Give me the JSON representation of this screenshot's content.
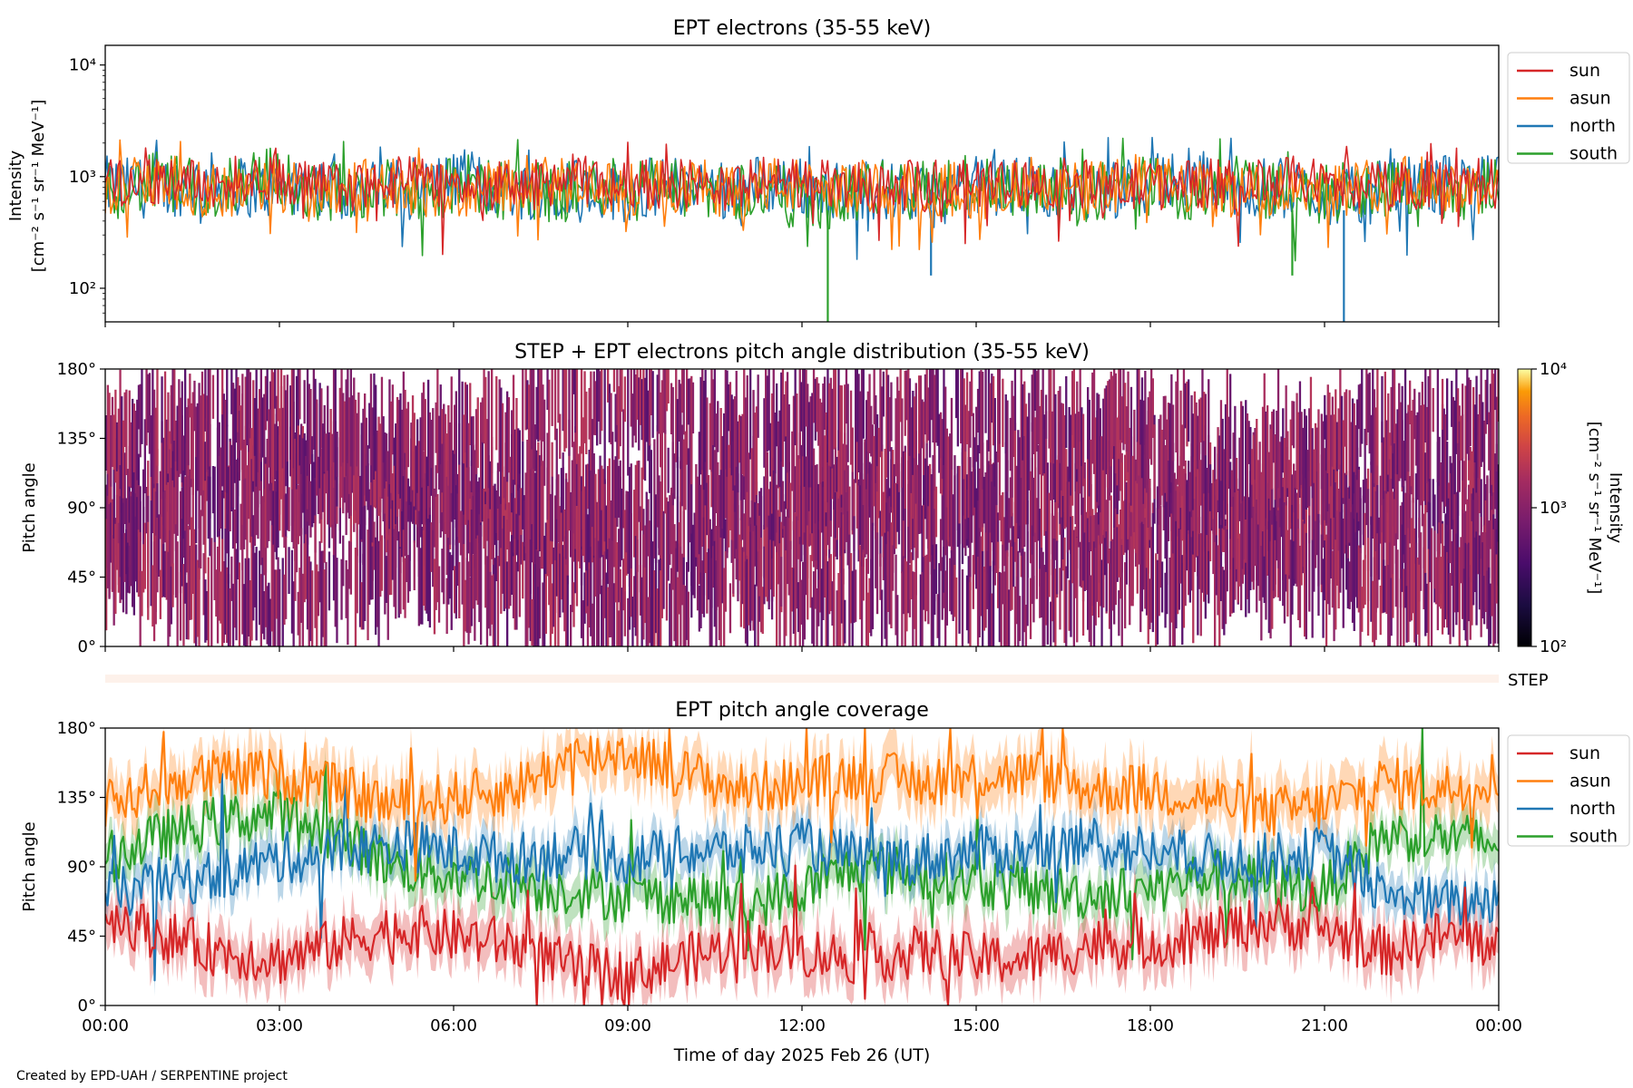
{
  "chart_data": [
    {
      "type": "line",
      "title": "EPT electrons (35-55 keV)",
      "ylabel": "Intensity",
      "yunit": "[cm⁻² s⁻¹ sr⁻¹ MeV⁻¹]",
      "yscale": "log",
      "ylim": [
        50,
        15000
      ],
      "yticks": [
        {
          "value": 100,
          "label": "10²"
        },
        {
          "value": 1000,
          "label": "10³"
        },
        {
          "value": 10000,
          "label": "10⁴"
        }
      ],
      "xlim": [
        0,
        24
      ],
      "legend": "outside-right",
      "series": [
        {
          "name": "north",
          "color": "#1f77b4",
          "base": 820,
          "spread": 0.55,
          "values": [
            800,
            700,
            1100,
            620,
            900,
            480,
            760,
            1300,
            560,
            950,
            420,
            880,
            700,
            1050,
            500,
            650,
            130,
            900,
            760,
            560,
            850,
            1700,
            540,
            690,
            50,
            700,
            980,
            860
          ]
        },
        {
          "name": "south",
          "color": "#2ca02c",
          "base": 780,
          "spread": 0.55,
          "values": [
            700,
            1200,
            600,
            1900,
            500,
            880,
            420,
            1000,
            760,
            560,
            1300,
            630,
            800,
            380,
            50,
            900,
            620,
            1400,
            700,
            540,
            980,
            650,
            1200,
            130,
            760,
            880,
            600,
            1100
          ]
        },
        {
          "name": "asun",
          "color": "#ff7f0e",
          "base": 800,
          "spread": 0.5,
          "values": [
            760,
            1300,
            520,
            900,
            640,
            1100,
            700,
            480,
            1200,
            820,
            560,
            950,
            700,
            1050,
            600,
            880,
            720,
            540,
            980,
            660,
            1200,
            760,
            520,
            900,
            700,
            1300,
            820,
            760
          ]
        },
        {
          "name": "sun",
          "color": "#d62728",
          "base": 850,
          "spread": 0.45,
          "values": [
            900,
            1200,
            700,
            1500,
            800,
            560,
            1100,
            900,
            640,
            1300,
            760,
            1000,
            620,
            1200,
            820,
            560,
            950,
            700,
            1100,
            850,
            640,
            1000,
            760,
            1200,
            900,
            700,
            1100,
            880
          ]
        }
      ]
    },
    {
      "type": "heatmap",
      "title": "STEP + EPT electrons pitch angle distribution (35-55 keV)",
      "ylabel": "Pitch angle",
      "ylim": [
        0,
        180
      ],
      "yticks": [
        {
          "value": 0,
          "label": "0°"
        },
        {
          "value": 45,
          "label": "45°"
        },
        {
          "value": 90,
          "label": "90°"
        },
        {
          "value": 135,
          "label": "135°"
        },
        {
          "value": 180,
          "label": "180°"
        }
      ],
      "xlim": [
        0,
        24
      ],
      "colorbar": {
        "label": "Intensity",
        "unit": "[cm⁻² s⁻¹ sr⁻¹ MeV⁻¹]",
        "scale": "log",
        "range": [
          100,
          10000
        ],
        "ticks": [
          {
            "value": 100,
            "label": "10²"
          },
          {
            "value": 1000,
            "label": "10³"
          },
          {
            "value": 10000,
            "label": "10⁴"
          }
        ],
        "colormap": "inferno"
      },
      "intensity_typical": 800
    },
    {
      "type": "line",
      "title": "",
      "label": "STEP",
      "note": "empty STEP strip"
    },
    {
      "type": "area",
      "title": "EPT pitch angle coverage",
      "ylabel": "Pitch angle",
      "xlabel": "Time of day 2025 Feb 26 (UT)",
      "ylim": [
        0,
        180
      ],
      "yticks": [
        {
          "value": 0,
          "label": "0°"
        },
        {
          "value": 45,
          "label": "45°"
        },
        {
          "value": 90,
          "label": "90°"
        },
        {
          "value": 135,
          "label": "135°"
        },
        {
          "value": 180,
          "label": "180°"
        }
      ],
      "xlim": [
        0,
        24
      ],
      "xticks": [
        {
          "value": 0,
          "label": "00:00"
        },
        {
          "value": 3,
          "label": "03:00"
        },
        {
          "value": 6,
          "label": "06:00"
        },
        {
          "value": 9,
          "label": "09:00"
        },
        {
          "value": 12,
          "label": "12:00"
        },
        {
          "value": 15,
          "label": "15:00"
        },
        {
          "value": 18,
          "label": "18:00"
        },
        {
          "value": 21,
          "label": "21:00"
        },
        {
          "value": 24,
          "label": "00:00"
        }
      ],
      "legend": "outside-right",
      "series": [
        {
          "name": "south",
          "color": "#2ca02c",
          "halfwidth": 12,
          "x": [
            0,
            1,
            2,
            3,
            4,
            5,
            6,
            7,
            8,
            9,
            10,
            11,
            12,
            13,
            14,
            15,
            16,
            17,
            18,
            19,
            20,
            21,
            22,
            23,
            24
          ],
          "values": [
            95,
            110,
            120,
            125,
            110,
            90,
            85,
            80,
            75,
            70,
            70,
            65,
            75,
            90,
            85,
            80,
            75,
            72,
            75,
            85,
            80,
            75,
            110,
            110,
            105
          ]
        },
        {
          "name": "north",
          "color": "#1f77b4",
          "halfwidth": 12,
          "x": [
            0,
            1,
            2,
            3,
            4,
            5,
            6,
            7,
            8,
            9,
            10,
            11,
            12,
            13,
            14,
            15,
            16,
            17,
            18,
            19,
            20,
            21,
            22,
            23,
            24
          ],
          "values": [
            70,
            80,
            85,
            95,
            100,
            105,
            100,
            95,
            100,
            95,
            100,
            100,
            105,
            95,
            95,
            100,
            100,
            105,
            100,
            95,
            95,
            100,
            75,
            65,
            70
          ]
        },
        {
          "name": "asun",
          "color": "#ff7f0e",
          "halfwidth": 15,
          "x": [
            0,
            1,
            2,
            3,
            4,
            5,
            6,
            7,
            8,
            9,
            10,
            11,
            12,
            13,
            14,
            15,
            16,
            17,
            18,
            19,
            20,
            21,
            22,
            23,
            24
          ],
          "values": [
            130,
            145,
            150,
            150,
            140,
            130,
            135,
            140,
            160,
            165,
            150,
            140,
            145,
            150,
            145,
            150,
            150,
            140,
            140,
            135,
            125,
            130,
            145,
            140,
            150
          ]
        },
        {
          "name": "sun",
          "color": "#d62728",
          "halfwidth": 15,
          "x": [
            0,
            1,
            2,
            3,
            4,
            5,
            6,
            7,
            8,
            9,
            10,
            11,
            12,
            13,
            14,
            15,
            16,
            17,
            18,
            19,
            20,
            21,
            22,
            23,
            24
          ],
          "values": [
            60,
            45,
            35,
            30,
            40,
            50,
            45,
            40,
            25,
            20,
            30,
            40,
            35,
            30,
            35,
            30,
            30,
            40,
            40,
            45,
            55,
            50,
            35,
            45,
            40
          ]
        }
      ]
    }
  ],
  "legend_order": [
    "sun",
    "asun",
    "north",
    "south"
  ],
  "footer": "Created by EPD-UAH / SERPENTINE project"
}
